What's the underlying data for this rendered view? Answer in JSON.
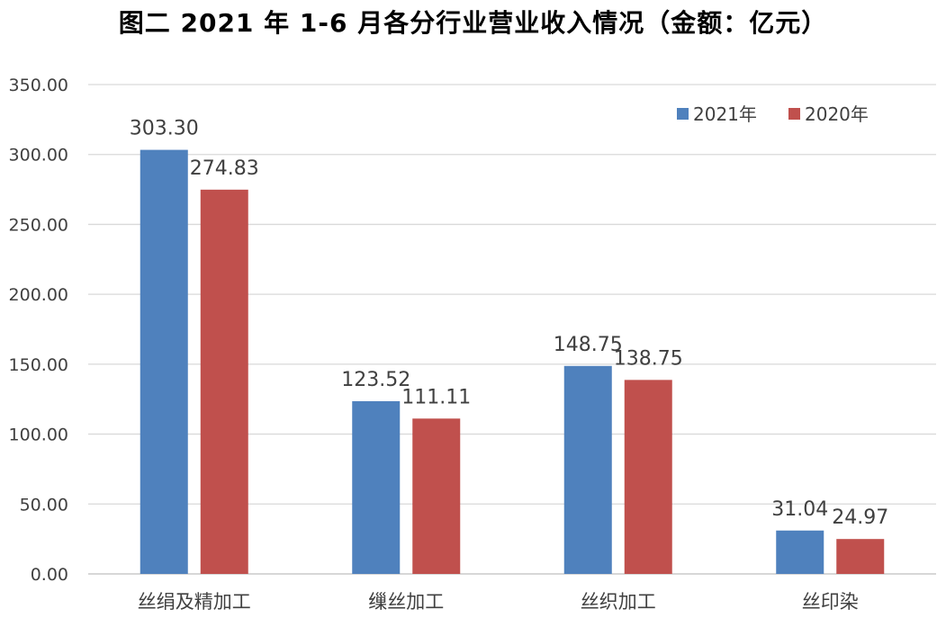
{
  "chart_data": {
    "type": "bar",
    "title": "图二   2021 年 1-6 月各分行业营业收入情况（金额：亿元）",
    "xlabel": "",
    "ylabel": "",
    "categories": [
      "丝绢及精加工",
      "缫丝加工",
      "丝织加工",
      "丝印染"
    ],
    "series": [
      {
        "name": "2021年",
        "color": "#4F81BD",
        "values": [
          303.3,
          123.52,
          148.75,
          31.04
        ]
      },
      {
        "name": "2020年",
        "color": "#C0504D",
        "values": [
          274.83,
          111.11,
          138.75,
          24.97
        ]
      }
    ],
    "ylim": [
      0,
      350
    ],
    "yticks": [
      "0.00",
      "50.00",
      "100.00",
      "150.00",
      "200.00",
      "250.00",
      "300.00",
      "350.00"
    ],
    "data_labels": [
      [
        "303.30",
        "123.52",
        "148.75",
        "31.04"
      ],
      [
        "274.83",
        "111.11",
        "138.75",
        "24.97"
      ]
    ],
    "grid": true,
    "legend_position": "top-right"
  }
}
